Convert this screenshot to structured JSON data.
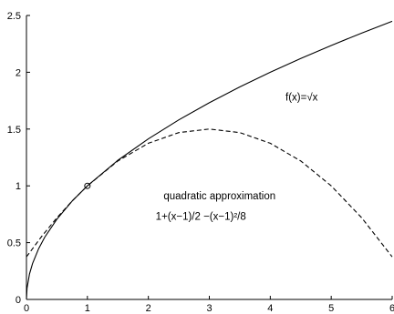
{
  "chart_data": {
    "type": "line",
    "xlim": [
      0,
      6
    ],
    "ylim": [
      0,
      2.5
    ],
    "x_ticks": [
      {
        "value": 0,
        "label": "0"
      },
      {
        "value": 1,
        "label": "1"
      },
      {
        "value": 2,
        "label": "2"
      },
      {
        "value": 3,
        "label": "3"
      },
      {
        "value": 4,
        "label": "4"
      },
      {
        "value": 5,
        "label": "5"
      },
      {
        "value": 6,
        "label": "6"
      }
    ],
    "y_ticks": [
      {
        "value": 0,
        "label": "0"
      },
      {
        "value": 0.5,
        "label": "0.5"
      },
      {
        "value": 1,
        "label": "1"
      },
      {
        "value": 1.5,
        "label": "1.5"
      },
      {
        "value": 2,
        "label": "2"
      },
      {
        "value": 2.5,
        "label": "2.5"
      }
    ],
    "grid": false,
    "series": [
      {
        "style": "solid",
        "color": "#000000",
        "x": [
          0,
          0.01,
          0.05,
          0.1,
          0.2,
          0.3,
          0.5,
          0.75,
          1,
          1.5,
          2,
          2.5,
          3,
          3.5,
          4,
          4.5,
          5,
          5.5,
          6
        ],
        "y": [
          0,
          0.1,
          0.224,
          0.316,
          0.447,
          0.548,
          0.707,
          0.866,
          1,
          1.225,
          1.414,
          1.581,
          1.732,
          1.871,
          2,
          2.121,
          2.236,
          2.345,
          2.449
        ]
      },
      {
        "style": "dashed",
        "color": "#000000",
        "x": [
          0,
          0.25,
          0.5,
          0.75,
          1,
          1.5,
          2,
          2.5,
          3,
          3.5,
          4,
          4.5,
          5,
          5.5,
          6
        ],
        "y": [
          0.375,
          0.555,
          0.719,
          0.867,
          1,
          1.219,
          1.375,
          1.469,
          1.5,
          1.469,
          1.375,
          1.219,
          1,
          0.719,
          0.375
        ]
      }
    ],
    "marker": {
      "x": 1,
      "y": 1,
      "shape": "circle-open"
    },
    "annotations": [
      {
        "id": "fx",
        "text": "f(x)=√x",
        "x": 4.25,
        "y": 1.75
      },
      {
        "id": "quad1",
        "text": "quadratic approximation",
        "x": 2.25,
        "y": 0.88
      },
      {
        "id": "quad2",
        "text": "1+(x−1)/2 −(x−1)²/8",
        "x": 2.12,
        "y": 0.7
      }
    ]
  }
}
